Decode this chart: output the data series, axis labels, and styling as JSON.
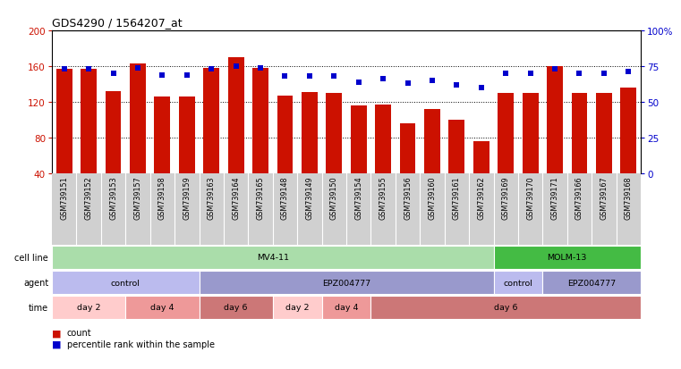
{
  "title": "GDS4290 / 1564207_at",
  "samples": [
    "GSM739151",
    "GSM739152",
    "GSM739153",
    "GSM739157",
    "GSM739158",
    "GSM739159",
    "GSM739163",
    "GSM739164",
    "GSM739165",
    "GSM739148",
    "GSM739149",
    "GSM739150",
    "GSM739154",
    "GSM739155",
    "GSM739156",
    "GSM739160",
    "GSM739161",
    "GSM739162",
    "GSM739169",
    "GSM739170",
    "GSM739171",
    "GSM739166",
    "GSM739167",
    "GSM739168"
  ],
  "counts": [
    157,
    157,
    132,
    163,
    126,
    126,
    158,
    170,
    158,
    127,
    131,
    130,
    116,
    117,
    96,
    112,
    100,
    76,
    130,
    130,
    160,
    130,
    130,
    136
  ],
  "percentiles": [
    73,
    73,
    70,
    74,
    69,
    69,
    73,
    75,
    74,
    68,
    68,
    68,
    64,
    66,
    63,
    65,
    62,
    60,
    70,
    70,
    73,
    70,
    70,
    71
  ],
  "ylim_left": [
    40,
    200
  ],
  "ylim_right": [
    0,
    100
  ],
  "yticks_left": [
    40,
    80,
    120,
    160,
    200
  ],
  "yticks_right": [
    0,
    25,
    50,
    75,
    100
  ],
  "bar_color": "#cc1100",
  "square_color": "#0000cc",
  "dotted_lines": [
    80,
    120,
    160
  ],
  "sample_bg_color": "#d0d0d0",
  "cell_line_segments": [
    {
      "text": "MV4-11",
      "start": 0,
      "end": 18,
      "color": "#aaddaa"
    },
    {
      "text": "MOLM-13",
      "start": 18,
      "end": 24,
      "color": "#44bb44"
    }
  ],
  "agent_segments": [
    {
      "text": "control",
      "start": 0,
      "end": 6,
      "color": "#bbbbee"
    },
    {
      "text": "EPZ004777",
      "start": 6,
      "end": 18,
      "color": "#9999cc"
    },
    {
      "text": "control",
      "start": 18,
      "end": 20,
      "color": "#bbbbee"
    },
    {
      "text": "EPZ004777",
      "start": 20,
      "end": 24,
      "color": "#9999cc"
    }
  ],
  "time_segments": [
    {
      "text": "day 2",
      "start": 0,
      "end": 3,
      "color": "#ffcccc"
    },
    {
      "text": "day 4",
      "start": 3,
      "end": 6,
      "color": "#ee9999"
    },
    {
      "text": "day 6",
      "start": 6,
      "end": 9,
      "color": "#cc7777"
    },
    {
      "text": "day 2",
      "start": 9,
      "end": 11,
      "color": "#ffcccc"
    },
    {
      "text": "day 4",
      "start": 11,
      "end": 13,
      "color": "#ee9999"
    },
    {
      "text": "day 6",
      "start": 13,
      "end": 24,
      "color": "#cc7777"
    }
  ],
  "legend_items": [
    {
      "color": "#cc1100",
      "label": "count"
    },
    {
      "color": "#0000cc",
      "label": "percentile rank within the sample"
    }
  ]
}
